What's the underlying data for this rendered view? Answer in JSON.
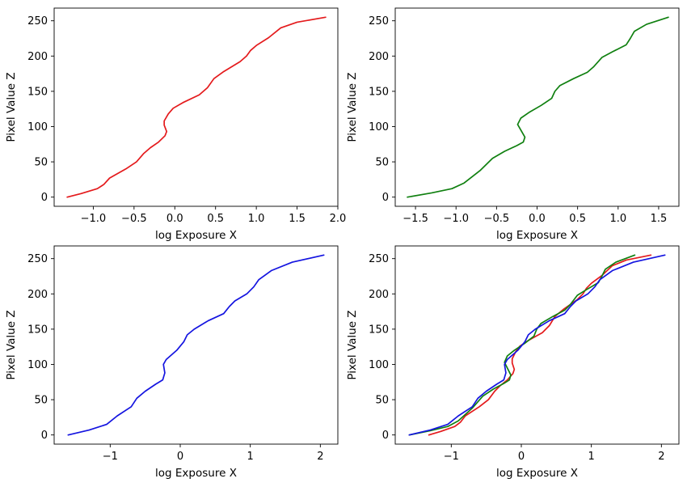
{
  "colors": {
    "red": "#e41a1c",
    "green": "#108010",
    "blue": "#1414e0"
  },
  "chart_data": [
    {
      "type": "line",
      "xlabel": "log Exposure X",
      "ylabel": "Pixel Value Z",
      "xlim": [
        -1.48,
        2.0
      ],
      "ylim": [
        -13,
        268
      ],
      "xticks": [
        -1.0,
        -0.5,
        0.0,
        0.5,
        1.0,
        1.5,
        2.0
      ],
      "xtick_labels": [
        "−1.0",
        "−0.5",
        "0.0",
        "0.5",
        "1.0",
        "1.5",
        "2.0"
      ],
      "yticks": [
        0,
        50,
        100,
        150,
        200,
        250
      ],
      "ytick_labels": [
        "0",
        "50",
        "100",
        "150",
        "200",
        "250"
      ],
      "series": [
        {
          "color": "red",
          "points": [
            [
              -1.32,
              0
            ],
            [
              -1.15,
              5
            ],
            [
              -0.95,
              12
            ],
            [
              -0.87,
              18
            ],
            [
              -0.8,
              27
            ],
            [
              -0.6,
              40
            ],
            [
              -0.47,
              50
            ],
            [
              -0.38,
              62
            ],
            [
              -0.3,
              70
            ],
            [
              -0.2,
              78
            ],
            [
              -0.12,
              87
            ],
            [
              -0.1,
              93
            ],
            [
              -0.13,
              102
            ],
            [
              -0.13,
              108
            ],
            [
              -0.08,
              118
            ],
            [
              -0.02,
              126
            ],
            [
              0.1,
              134
            ],
            [
              0.3,
              145
            ],
            [
              0.4,
              155
            ],
            [
              0.48,
              168
            ],
            [
              0.6,
              178
            ],
            [
              0.8,
              192
            ],
            [
              0.88,
              200
            ],
            [
              0.93,
              208
            ],
            [
              1.0,
              215
            ],
            [
              1.15,
              226
            ],
            [
              1.3,
              240
            ],
            [
              1.5,
              248
            ],
            [
              1.85,
              255
            ]
          ]
        }
      ]
    },
    {
      "type": "line",
      "xlabel": "log Exposure X",
      "ylabel": "Pixel Value Z",
      "xlim": [
        -1.75,
        1.75
      ],
      "ylim": [
        -13,
        268
      ],
      "xticks": [
        -1.5,
        -1.0,
        -0.5,
        0.0,
        0.5,
        1.0,
        1.5
      ],
      "xtick_labels": [
        "−1.5",
        "−1.0",
        "−0.5",
        "0.0",
        "0.5",
        "1.0",
        "1.5"
      ],
      "yticks": [
        0,
        50,
        100,
        150,
        200,
        250
      ],
      "ytick_labels": [
        "0",
        "50",
        "100",
        "150",
        "200",
        "250"
      ],
      "series": [
        {
          "color": "green",
          "points": [
            [
              -1.6,
              0
            ],
            [
              -1.3,
              6
            ],
            [
              -1.05,
              12
            ],
            [
              -0.9,
              20
            ],
            [
              -0.7,
              38
            ],
            [
              -0.55,
              55
            ],
            [
              -0.4,
              65
            ],
            [
              -0.25,
              73
            ],
            [
              -0.17,
              78
            ],
            [
              -0.15,
              85
            ],
            [
              -0.2,
              95
            ],
            [
              -0.24,
              103
            ],
            [
              -0.2,
              112
            ],
            [
              -0.1,
              120
            ],
            [
              0.05,
              130
            ],
            [
              0.18,
              140
            ],
            [
              0.22,
              150
            ],
            [
              0.28,
              158
            ],
            [
              0.45,
              168
            ],
            [
              0.62,
              177
            ],
            [
              0.7,
              185
            ],
            [
              0.8,
              198
            ],
            [
              0.93,
              206
            ],
            [
              1.1,
              216
            ],
            [
              1.15,
              225
            ],
            [
              1.2,
              235
            ],
            [
              1.35,
              245
            ],
            [
              1.62,
              255
            ]
          ]
        }
      ]
    },
    {
      "type": "line",
      "xlabel": "log Exposure X",
      "ylabel": "Pixel Value Z",
      "xlim": [
        -1.8,
        2.25
      ],
      "ylim": [
        -13,
        268
      ],
      "xticks": [
        -1,
        0,
        1,
        2
      ],
      "xtick_labels": [
        "−1",
        "0",
        "1",
        "2"
      ],
      "yticks": [
        0,
        50,
        100,
        150,
        200,
        250
      ],
      "ytick_labels": [
        "0",
        "50",
        "100",
        "150",
        "200",
        "250"
      ],
      "series": [
        {
          "color": "blue",
          "points": [
            [
              -1.6,
              0
            ],
            [
              -1.3,
              7
            ],
            [
              -1.05,
              15
            ],
            [
              -0.9,
              27
            ],
            [
              -0.7,
              40
            ],
            [
              -0.62,
              52
            ],
            [
              -0.5,
              62
            ],
            [
              -0.35,
              72
            ],
            [
              -0.25,
              78
            ],
            [
              -0.22,
              88
            ],
            [
              -0.24,
              100
            ],
            [
              -0.2,
              107
            ],
            [
              -0.05,
              120
            ],
            [
              0.05,
              132
            ],
            [
              0.1,
              142
            ],
            [
              0.2,
              150
            ],
            [
              0.4,
              162
            ],
            [
              0.62,
              172
            ],
            [
              0.7,
              182
            ],
            [
              0.78,
              190
            ],
            [
              0.95,
              200
            ],
            [
              1.05,
              210
            ],
            [
              1.12,
              220
            ],
            [
              1.3,
              233
            ],
            [
              1.6,
              245
            ],
            [
              2.05,
              255
            ]
          ]
        }
      ]
    },
    {
      "type": "line",
      "xlabel": "log Exposure X",
      "ylabel": "Pixel Value Z",
      "xlim": [
        -1.8,
        2.25
      ],
      "ylim": [
        -13,
        268
      ],
      "xticks": [
        -1,
        0,
        1,
        2
      ],
      "xtick_labels": [
        "−1",
        "0",
        "1",
        "2"
      ],
      "yticks": [
        0,
        50,
        100,
        150,
        200,
        250
      ],
      "ytick_labels": [
        "0",
        "50",
        "100",
        "150",
        "200",
        "250"
      ],
      "series": [
        {
          "color": "red",
          "points": [
            [
              -1.32,
              0
            ],
            [
              -1.15,
              5
            ],
            [
              -0.95,
              12
            ],
            [
              -0.87,
              18
            ],
            [
              -0.8,
              27
            ],
            [
              -0.6,
              40
            ],
            [
              -0.47,
              50
            ],
            [
              -0.38,
              62
            ],
            [
              -0.3,
              70
            ],
            [
              -0.2,
              78
            ],
            [
              -0.12,
              87
            ],
            [
              -0.1,
              93
            ],
            [
              -0.13,
              102
            ],
            [
              -0.13,
              108
            ],
            [
              -0.08,
              118
            ],
            [
              -0.02,
              126
            ],
            [
              0.1,
              134
            ],
            [
              0.3,
              145
            ],
            [
              0.4,
              155
            ],
            [
              0.48,
              168
            ],
            [
              0.6,
              178
            ],
            [
              0.8,
              192
            ],
            [
              0.88,
              200
            ],
            [
              0.93,
              208
            ],
            [
              1.0,
              215
            ],
            [
              1.15,
              226
            ],
            [
              1.3,
              240
            ],
            [
              1.5,
              248
            ],
            [
              1.85,
              255
            ]
          ]
        },
        {
          "color": "green",
          "points": [
            [
              -1.6,
              0
            ],
            [
              -1.3,
              6
            ],
            [
              -1.05,
              12
            ],
            [
              -0.9,
              20
            ],
            [
              -0.7,
              38
            ],
            [
              -0.55,
              55
            ],
            [
              -0.4,
              65
            ],
            [
              -0.25,
              73
            ],
            [
              -0.17,
              78
            ],
            [
              -0.15,
              85
            ],
            [
              -0.2,
              95
            ],
            [
              -0.24,
              103
            ],
            [
              -0.2,
              112
            ],
            [
              -0.1,
              120
            ],
            [
              0.05,
              130
            ],
            [
              0.18,
              140
            ],
            [
              0.22,
              150
            ],
            [
              0.28,
              158
            ],
            [
              0.45,
              168
            ],
            [
              0.62,
              177
            ],
            [
              0.7,
              185
            ],
            [
              0.8,
              198
            ],
            [
              0.93,
              206
            ],
            [
              1.1,
              216
            ],
            [
              1.15,
              225
            ],
            [
              1.2,
              235
            ],
            [
              1.35,
              245
            ],
            [
              1.62,
              255
            ]
          ]
        },
        {
          "color": "blue",
          "points": [
            [
              -1.6,
              0
            ],
            [
              -1.3,
              7
            ],
            [
              -1.05,
              15
            ],
            [
              -0.9,
              27
            ],
            [
              -0.7,
              40
            ],
            [
              -0.62,
              52
            ],
            [
              -0.5,
              62
            ],
            [
              -0.35,
              72
            ],
            [
              -0.25,
              78
            ],
            [
              -0.22,
              88
            ],
            [
              -0.24,
              100
            ],
            [
              -0.2,
              107
            ],
            [
              -0.05,
              120
            ],
            [
              0.05,
              132
            ],
            [
              0.1,
              142
            ],
            [
              0.2,
              150
            ],
            [
              0.4,
              162
            ],
            [
              0.62,
              172
            ],
            [
              0.7,
              182
            ],
            [
              0.78,
              190
            ],
            [
              0.95,
              200
            ],
            [
              1.05,
              210
            ],
            [
              1.12,
              220
            ],
            [
              1.3,
              233
            ],
            [
              1.6,
              245
            ],
            [
              2.05,
              255
            ]
          ]
        }
      ]
    }
  ]
}
